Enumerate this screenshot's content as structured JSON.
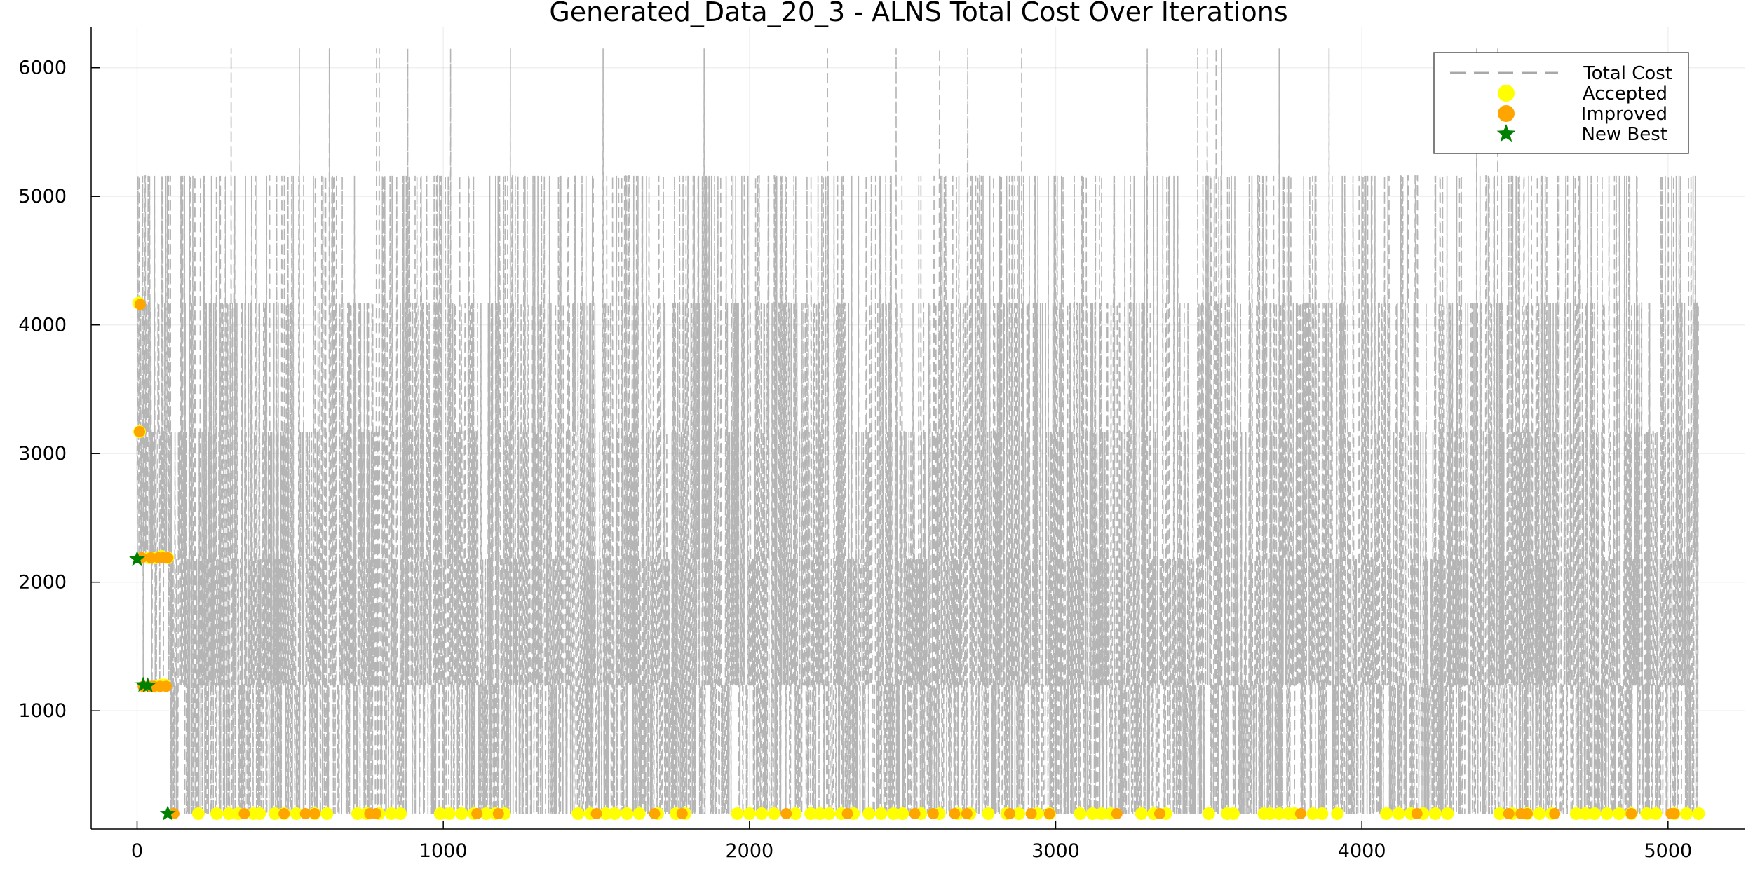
{
  "chart_data": {
    "type": "line",
    "title": "Generated_Data_20_3 - ALNS Total Cost Over Iterations",
    "xlabel": "",
    "ylabel": "",
    "xlim": [
      -150,
      5250
    ],
    "ylim": [
      80,
      6320
    ],
    "x_ticks": [
      0,
      1000,
      2000,
      3000,
      4000,
      5000
    ],
    "y_ticks": [
      1000,
      2000,
      3000,
      4000,
      5000,
      6000
    ],
    "grid": true,
    "legend_position": "top-right",
    "legend": [
      "Total Cost",
      "Accepted",
      "Improved",
      "New Best"
    ],
    "colors": {
      "total_cost": "#a8a8a8",
      "accepted": "#ffff00",
      "improved": "#ffa500",
      "new_best": "#008000"
    },
    "series": [
      {
        "name": "Total Cost",
        "style": "dashed-line",
        "n_iterations": 5100,
        "levels": [
          200,
          1200,
          2180,
          3170,
          4170,
          5160,
          6150
        ]
      },
      {
        "name": "Accepted",
        "style": "marker-circle",
        "points": [
          [
            5,
            4170
          ],
          [
            8,
            3170
          ],
          [
            40,
            2190
          ],
          [
            60,
            2190
          ],
          [
            80,
            2200
          ],
          [
            100,
            2190
          ],
          [
            60,
            1190
          ],
          [
            80,
            1200
          ],
          [
            90,
            1200
          ],
          [
            200,
            200
          ],
          [
            260,
            200
          ],
          [
            300,
            200
          ],
          [
            330,
            200
          ],
          [
            380,
            200
          ],
          [
            400,
            200
          ],
          [
            450,
            200
          ],
          [
            480,
            200
          ],
          [
            520,
            200
          ],
          [
            580,
            200
          ],
          [
            620,
            200
          ],
          [
            720,
            200
          ],
          [
            750,
            200
          ],
          [
            790,
            200
          ],
          [
            830,
            200
          ],
          [
            860,
            200
          ],
          [
            990,
            200
          ],
          [
            1020,
            200
          ],
          [
            1060,
            200
          ],
          [
            1100,
            200
          ],
          [
            1140,
            200
          ],
          [
            1170,
            200
          ],
          [
            1200,
            200
          ],
          [
            1440,
            200
          ],
          [
            1480,
            200
          ],
          [
            1530,
            200
          ],
          [
            1560,
            200
          ],
          [
            1600,
            200
          ],
          [
            1640,
            200
          ],
          [
            1700,
            200
          ],
          [
            1760,
            200
          ],
          [
            1790,
            200
          ],
          [
            1960,
            200
          ],
          [
            2000,
            200
          ],
          [
            2040,
            200
          ],
          [
            2080,
            200
          ],
          [
            2150,
            200
          ],
          [
            2200,
            200
          ],
          [
            2230,
            200
          ],
          [
            2260,
            200
          ],
          [
            2300,
            200
          ],
          [
            2340,
            200
          ],
          [
            2390,
            200
          ],
          [
            2430,
            200
          ],
          [
            2470,
            200
          ],
          [
            2500,
            200
          ],
          [
            2560,
            200
          ],
          [
            2620,
            200
          ],
          [
            2680,
            200
          ],
          [
            2720,
            200
          ],
          [
            2780,
            200
          ],
          [
            2840,
            200
          ],
          [
            2880,
            200
          ],
          [
            2940,
            200
          ],
          [
            2980,
            200
          ],
          [
            3080,
            200
          ],
          [
            3120,
            200
          ],
          [
            3150,
            200
          ],
          [
            3180,
            200
          ],
          [
            3280,
            200
          ],
          [
            3320,
            200
          ],
          [
            3360,
            200
          ],
          [
            3500,
            200
          ],
          [
            3560,
            200
          ],
          [
            3580,
            200
          ],
          [
            3680,
            200
          ],
          [
            3700,
            200
          ],
          [
            3730,
            200
          ],
          [
            3760,
            200
          ],
          [
            3780,
            200
          ],
          [
            3840,
            200
          ],
          [
            3870,
            200
          ],
          [
            3920,
            200
          ],
          [
            4080,
            200
          ],
          [
            4120,
            200
          ],
          [
            4160,
            200
          ],
          [
            4200,
            200
          ],
          [
            4240,
            200
          ],
          [
            4280,
            200
          ],
          [
            4450,
            200
          ],
          [
            4490,
            200
          ],
          [
            4540,
            200
          ],
          [
            4580,
            200
          ],
          [
            4620,
            200
          ],
          [
            4700,
            200
          ],
          [
            4730,
            200
          ],
          [
            4760,
            200
          ],
          [
            4800,
            200
          ],
          [
            4840,
            200
          ],
          [
            4880,
            200
          ],
          [
            4930,
            200
          ],
          [
            4960,
            200
          ],
          [
            5020,
            200
          ],
          [
            5060,
            200
          ],
          [
            5100,
            200
          ]
        ]
      },
      {
        "name": "Improved",
        "style": "marker-circle",
        "points": [
          [
            10,
            4160
          ],
          [
            8,
            3170
          ],
          [
            15,
            2190
          ],
          [
            45,
            2190
          ],
          [
            70,
            2190
          ],
          [
            85,
            2190
          ],
          [
            100,
            2190
          ],
          [
            20,
            1190
          ],
          [
            40,
            1190
          ],
          [
            55,
            1190
          ],
          [
            75,
            1190
          ],
          [
            95,
            1190
          ],
          [
            120,
            200
          ],
          [
            350,
            200
          ],
          [
            480,
            200
          ],
          [
            550,
            200
          ],
          [
            580,
            200
          ],
          [
            760,
            200
          ],
          [
            780,
            200
          ],
          [
            1110,
            200
          ],
          [
            1180,
            200
          ],
          [
            1500,
            200
          ],
          [
            1690,
            200
          ],
          [
            1780,
            200
          ],
          [
            2120,
            200
          ],
          [
            2320,
            200
          ],
          [
            2540,
            200
          ],
          [
            2600,
            200
          ],
          [
            2670,
            200
          ],
          [
            2710,
            200
          ],
          [
            2850,
            200
          ],
          [
            2920,
            200
          ],
          [
            2980,
            200
          ],
          [
            3200,
            200
          ],
          [
            3340,
            200
          ],
          [
            3800,
            200
          ],
          [
            4180,
            200
          ],
          [
            4480,
            200
          ],
          [
            4520,
            200
          ],
          [
            4540,
            200
          ],
          [
            4630,
            200
          ],
          [
            4880,
            200
          ],
          [
            5010,
            200
          ],
          [
            5020,
            200
          ]
        ]
      },
      {
        "name": "New Best",
        "style": "marker-star",
        "points": [
          [
            0,
            2180
          ],
          [
            20,
            1200
          ],
          [
            35,
            1195
          ],
          [
            100,
            200
          ]
        ]
      }
    ]
  }
}
